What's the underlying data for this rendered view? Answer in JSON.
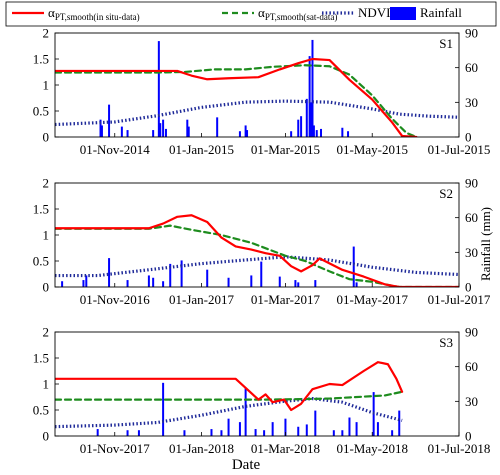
{
  "legend": {
    "items": [
      {
        "label": "α",
        "sub": "PT,smooth(in situ-data)",
        "color": "#ff0000",
        "style": "solid",
        "series_key": "alpha_insitu"
      },
      {
        "label": "α",
        "sub": "PT,smooth(sat-data)",
        "color": "#1e8c1e",
        "style": "dashed",
        "series_key": "alpha_sat"
      },
      {
        "label": "NDVI",
        "sub": "",
        "color": "#1f2a99",
        "style": "dotted",
        "series_key": "ndvi"
      },
      {
        "label": "Rainfall",
        "sub": "",
        "color": "#0000ff",
        "style": "bar",
        "series_key": "rainfall"
      }
    ]
  },
  "figure": {
    "xlabel": "Date",
    "y2label": "Rainfall (mm)"
  },
  "chart_data": [
    {
      "type": "line",
      "panel": "S1",
      "x_range": [
        "2014-09-20",
        "2015-07-01"
      ],
      "x_ticks": [
        {
          "date": "2014-11-01",
          "label": "01-Nov-2014"
        },
        {
          "date": "2015-01-01",
          "label": "01-Jan-2015"
        },
        {
          "date": "2015-03-01",
          "label": "01-Mar-2015"
        },
        {
          "date": "2015-05-01",
          "label": "01-May-2015"
        },
        {
          "date": "2015-07-01",
          "label": "01-Jul-2015"
        }
      ],
      "ylim": [
        0,
        2
      ],
      "y_ticks": [
        "0",
        "0.5",
        "1",
        "1.5",
        "2"
      ],
      "y2lim": [
        0,
        90
      ],
      "y2_ticks": [
        "0",
        "30",
        "60",
        "90"
      ],
      "series": {
        "alpha_insitu": {
          "x": [
            "2014-09-20",
            "2014-10-15",
            "2014-12-15",
            "2014-12-25",
            "2015-01-05",
            "2015-01-20",
            "2015-02-10",
            "2015-02-25",
            "2015-03-10",
            "2015-03-20",
            "2015-04-01",
            "2015-04-15",
            "2015-05-01",
            "2015-05-15",
            "2015-05-22",
            "2015-06-01"
          ],
          "y": [
            1.27,
            1.27,
            1.27,
            1.18,
            1.11,
            1.13,
            1.15,
            1.3,
            1.42,
            1.5,
            1.48,
            1.1,
            0.72,
            0.28,
            0.02,
            0.0
          ]
        },
        "alpha_sat": {
          "x": [
            "2014-09-20",
            "2014-12-01",
            "2014-12-20",
            "2015-01-10",
            "2015-02-01",
            "2015-02-20",
            "2015-03-15",
            "2015-04-01",
            "2015-04-15",
            "2015-05-01",
            "2015-05-15",
            "2015-05-25",
            "2015-06-01"
          ],
          "y": [
            1.24,
            1.24,
            1.25,
            1.3,
            1.3,
            1.35,
            1.38,
            1.36,
            1.2,
            0.8,
            0.35,
            0.08,
            0.0
          ]
        },
        "ndvi": {
          "x": [
            "2014-09-20",
            "2014-11-01",
            "2014-12-01",
            "2015-01-01",
            "2015-02-01",
            "2015-03-01",
            "2015-04-01",
            "2015-05-01",
            "2015-05-20",
            "2015-06-10",
            "2015-07-01"
          ],
          "y": [
            0.24,
            0.29,
            0.41,
            0.57,
            0.67,
            0.69,
            0.67,
            0.54,
            0.44,
            0.4,
            0.38
          ]
        },
        "rainfall": {
          "x": [
            "2014-10-22",
            "2014-10-23",
            "2014-10-28",
            "2014-11-06",
            "2014-11-10",
            "2014-11-28",
            "2014-12-02",
            "2014-12-03",
            "2014-12-05",
            "2014-12-07",
            "2014-12-22",
            "2014-12-23",
            "2015-01-12",
            "2015-01-28",
            "2015-02-01",
            "2015-02-02",
            "2015-03-05",
            "2015-03-10",
            "2015-03-12",
            "2015-03-16",
            "2015-03-18",
            "2015-03-19",
            "2015-03-20",
            "2015-03-21",
            "2015-03-23",
            "2015-03-26",
            "2015-04-10",
            "2015-04-14"
          ],
          "y": [
            15,
            10,
            28,
            9,
            6,
            6,
            83,
            12,
            15,
            7,
            15,
            9,
            17,
            5,
            10,
            6,
            5,
            15,
            18,
            33,
            70,
            30,
            84,
            10,
            6,
            7,
            8,
            5
          ]
        }
      }
    },
    {
      "type": "line",
      "panel": "S2",
      "x_range": [
        "2016-09-20",
        "2017-07-01"
      ],
      "x_ticks": [
        {
          "date": "2016-11-01",
          "label": "01-Nov-2016"
        },
        {
          "date": "2017-01-01",
          "label": "01-Jan-2017"
        },
        {
          "date": "2017-03-01",
          "label": "01-Mar-2017"
        },
        {
          "date": "2017-05-01",
          "label": "01-May-2017"
        },
        {
          "date": "2017-07-01",
          "label": "01-Jul-2017"
        }
      ],
      "ylim": [
        0,
        2
      ],
      "y_ticks": [
        "0",
        "0.5",
        "1",
        "1.5",
        "2"
      ],
      "y2lim": [
        0,
        90
      ],
      "y2_ticks": [
        "0",
        "30",
        "60",
        "90"
      ],
      "series": {
        "alpha_insitu": {
          "x": [
            "2016-09-20",
            "2016-11-25",
            "2016-12-05",
            "2016-12-15",
            "2016-12-25",
            "2017-01-05",
            "2017-01-15",
            "2017-01-25",
            "2017-02-05",
            "2017-02-15",
            "2017-02-25",
            "2017-03-05",
            "2017-03-12",
            "2017-03-20",
            "2017-03-25",
            "2017-04-10",
            "2017-04-25",
            "2017-05-10",
            "2017-05-20",
            "2017-07-01"
          ],
          "y": [
            1.13,
            1.13,
            1.22,
            1.35,
            1.38,
            1.25,
            0.95,
            0.78,
            0.72,
            0.65,
            0.6,
            0.4,
            0.3,
            0.42,
            0.55,
            0.33,
            0.2,
            0.05,
            0.0,
            0.0
          ]
        },
        "alpha_sat": {
          "x": [
            "2016-09-20",
            "2016-11-25",
            "2016-12-10",
            "2016-12-25",
            "2017-01-15",
            "2017-02-05",
            "2017-03-01",
            "2017-03-15",
            "2017-04-01",
            "2017-04-15",
            "2017-05-01",
            "2017-05-20",
            "2017-07-01"
          ],
          "y": [
            1.12,
            1.12,
            1.18,
            1.1,
            1.0,
            0.85,
            0.6,
            0.5,
            0.3,
            0.15,
            0.1,
            0.0,
            0.0
          ]
        },
        "ndvi": {
          "x": [
            "2016-09-20",
            "2016-10-20",
            "2016-12-01",
            "2017-01-01",
            "2017-02-01",
            "2017-03-01",
            "2017-04-01",
            "2017-05-01",
            "2017-06-01",
            "2017-07-01"
          ],
          "y": [
            0.22,
            0.22,
            0.35,
            0.45,
            0.52,
            0.58,
            0.52,
            0.38,
            0.28,
            0.24
          ]
        },
        "rainfall": {
          "x": [
            "2016-09-25",
            "2016-10-10",
            "2016-10-12",
            "2016-10-28",
            "2016-11-10",
            "2016-11-25",
            "2016-11-28",
            "2016-12-05",
            "2016-12-10",
            "2016-12-18",
            "2017-01-05",
            "2017-01-20",
            "2017-02-05",
            "2017-02-12",
            "2017-02-25",
            "2017-03-08",
            "2017-03-10",
            "2017-03-22",
            "2017-04-18",
            "2017-04-20"
          ],
          "y": [
            5,
            6,
            10,
            25,
            6,
            10,
            8,
            5,
            20,
            23,
            15,
            8,
            10,
            22,
            9,
            6,
            4,
            6,
            35,
            4
          ]
        }
      }
    },
    {
      "type": "line",
      "panel": "S3",
      "x_range": [
        "2017-09-20",
        "2018-07-01"
      ],
      "x_ticks": [
        {
          "date": "2017-11-01",
          "label": "01-Nov-2017"
        },
        {
          "date": "2018-01-01",
          "label": "01-Jan-2018"
        },
        {
          "date": "2018-03-01",
          "label": "01-Mar-2018"
        },
        {
          "date": "2018-05-01",
          "label": "01-May-2018"
        },
        {
          "date": "2018-07-01",
          "label": "01-Jul-2018"
        }
      ],
      "ylim": [
        0,
        2
      ],
      "y_ticks": [
        "0",
        "0.5",
        "1",
        "1.5",
        "2"
      ],
      "y2lim": [
        0,
        90
      ],
      "y2_ticks": [
        "0",
        "30",
        "60",
        "90"
      ],
      "series": {
        "alpha_insitu": {
          "x": [
            "2017-09-20",
            "2018-01-25",
            "2018-02-02",
            "2018-02-10",
            "2018-02-15",
            "2018-02-20",
            "2018-02-28",
            "2018-03-05",
            "2018-03-12",
            "2018-03-20",
            "2018-04-01",
            "2018-04-10",
            "2018-04-25",
            "2018-05-05",
            "2018-05-12",
            "2018-05-18",
            "2018-05-22"
          ],
          "y": [
            1.1,
            1.1,
            0.9,
            0.7,
            0.8,
            0.65,
            0.7,
            0.5,
            0.62,
            0.9,
            1.0,
            0.98,
            1.25,
            1.42,
            1.38,
            1.1,
            0.85
          ]
        },
        "alpha_sat": {
          "x": [
            "2017-09-20",
            "2018-02-15",
            "2018-03-15",
            "2018-04-01",
            "2018-05-10",
            "2018-05-22"
          ],
          "y": [
            0.7,
            0.7,
            0.71,
            0.72,
            0.78,
            0.85
          ]
        },
        "ndvi": {
          "x": [
            "2017-09-20",
            "2017-11-01",
            "2017-12-01",
            "2018-01-01",
            "2018-02-01",
            "2018-03-01",
            "2018-03-20",
            "2018-04-10",
            "2018-05-01",
            "2018-05-22"
          ],
          "y": [
            0.18,
            0.21,
            0.26,
            0.4,
            0.57,
            0.67,
            0.72,
            0.65,
            0.45,
            0.3
          ]
        },
        "rainfall": {
          "x": [
            "2017-10-20",
            "2017-11-10",
            "2017-11-18",
            "2017-12-05",
            "2017-12-20",
            "2018-01-08",
            "2018-01-15",
            "2018-01-20",
            "2018-01-28",
            "2018-02-01",
            "2018-02-08",
            "2018-02-14",
            "2018-02-20",
            "2018-03-01",
            "2018-03-10",
            "2018-03-16",
            "2018-03-22",
            "2018-04-04",
            "2018-04-10",
            "2018-04-15",
            "2018-04-20",
            "2018-05-02",
            "2018-05-05",
            "2018-05-15",
            "2018-05-20"
          ],
          "y": [
            6,
            5,
            5,
            46,
            5,
            6,
            5,
            15,
            12,
            42,
            6,
            5,
            12,
            15,
            8,
            10,
            22,
            5,
            5,
            16,
            12,
            38,
            12,
            5,
            22
          ]
        }
      }
    }
  ]
}
